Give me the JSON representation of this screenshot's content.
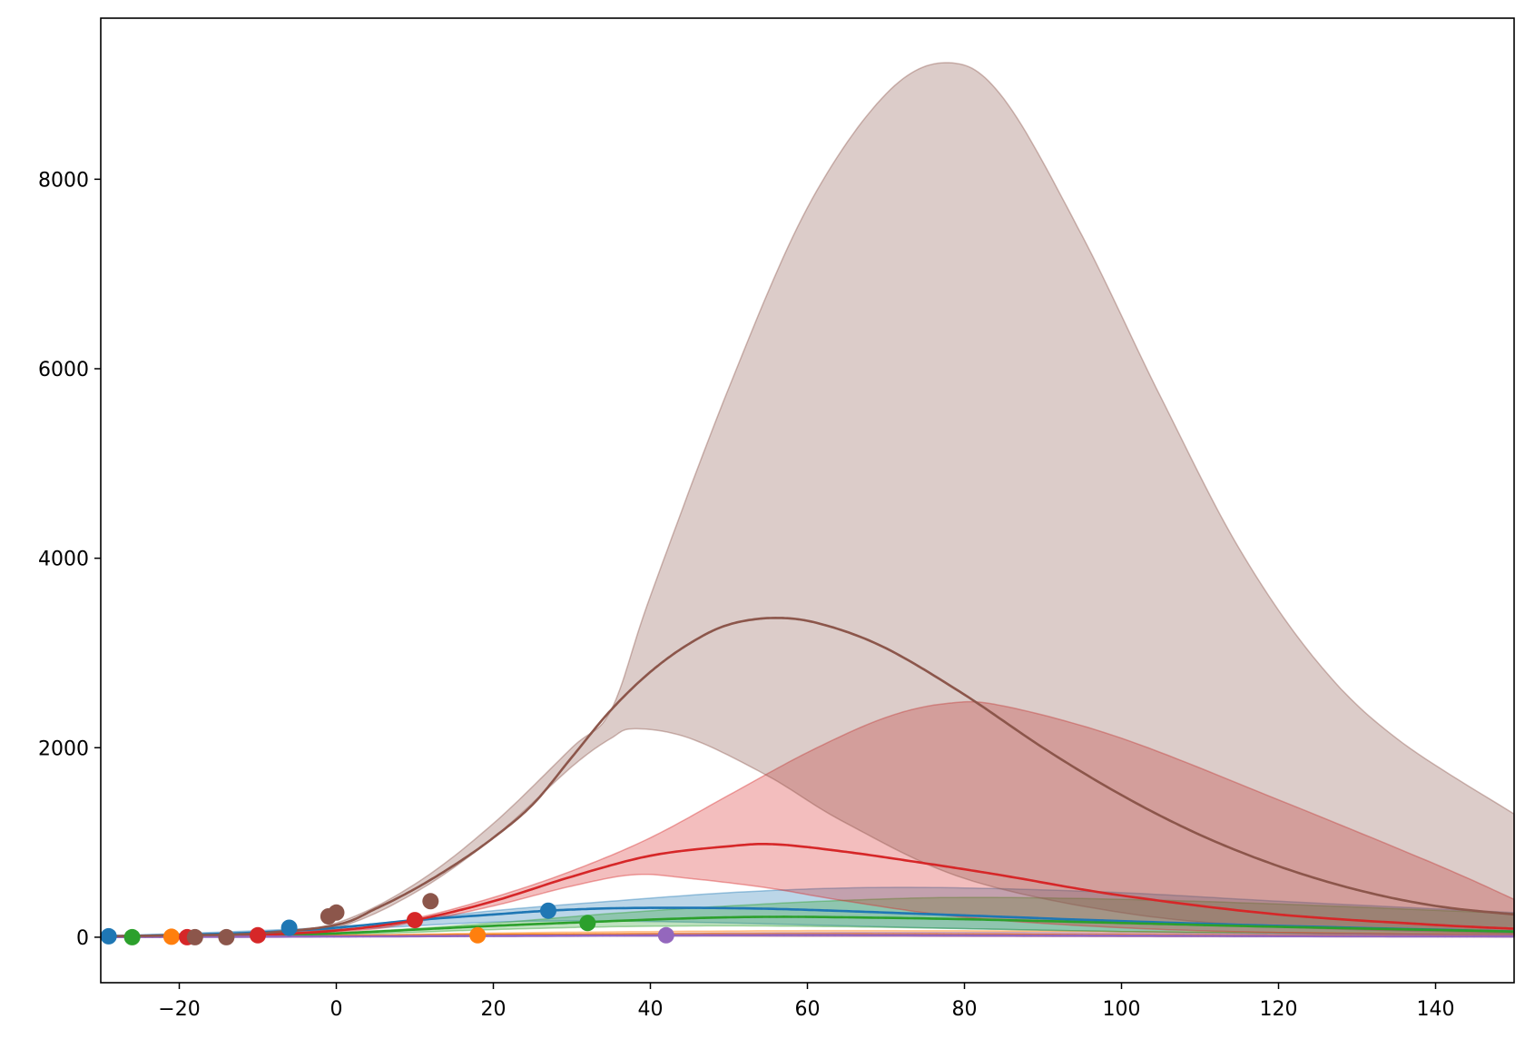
{
  "chart_data": {
    "type": "line",
    "title": "",
    "xlabel": "",
    "ylabel": "",
    "xlim": [
      -30,
      150
    ],
    "ylim": [
      -480,
      9700
    ],
    "grid": false,
    "legend": "none",
    "x_ticks": [
      -20,
      0,
      20,
      40,
      60,
      80,
      100,
      120,
      140
    ],
    "x_tick_labels": [
      "−20",
      "0",
      "20",
      "40",
      "60",
      "80",
      "100",
      "120",
      "140"
    ],
    "y_ticks": [
      0,
      2000,
      4000,
      6000,
      8000
    ],
    "y_tick_labels": [
      "0",
      "2000",
      "4000",
      "6000",
      "8000"
    ],
    "series": [
      {
        "color": "#1f77b4",
        "curve": {
          "x": [
            -30,
            -20,
            -10,
            0,
            10,
            20,
            27,
            35,
            45,
            55,
            65,
            80,
            100,
            120,
            150
          ],
          "y": [
            10,
            25,
            50,
            100,
            180,
            240,
            280,
            305,
            310,
            300,
            275,
            230,
            170,
            120,
            60
          ]
        },
        "band_upper": {
          "x": [
            -30,
            0,
            20,
            35,
            50,
            65,
            80,
            100,
            120,
            150
          ],
          "y": [
            10,
            110,
            280,
            380,
            470,
            520,
            520,
            470,
            380,
            260
          ]
        },
        "band_lower": {
          "x": [
            -30,
            0,
            20,
            35,
            50,
            65,
            80,
            100,
            120,
            150
          ],
          "y": [
            10,
            80,
            160,
            170,
            150,
            120,
            90,
            60,
            40,
            20
          ]
        },
        "points": {
          "x": [
            -29,
            -6,
            27
          ],
          "y": [
            10,
            100,
            280
          ]
        }
      },
      {
        "color": "#ff7f0e",
        "curve": {
          "x": [
            -30,
            0,
            20,
            40,
            60,
            80,
            100,
            120,
            150
          ],
          "y": [
            5,
            15,
            25,
            30,
            30,
            28,
            22,
            17,
            10
          ]
        },
        "band_upper": {
          "x": [
            -30,
            0,
            20,
            40,
            60,
            80,
            100,
            120,
            150
          ],
          "y": [
            5,
            20,
            45,
            60,
            70,
            68,
            60,
            50,
            35
          ]
        },
        "band_lower": {
          "x": [
            -30,
            0,
            20,
            40,
            60,
            80,
            100,
            120,
            150
          ],
          "y": [
            5,
            10,
            15,
            15,
            12,
            10,
            8,
            6,
            4
          ]
        },
        "points": {
          "x": [
            -21,
            18
          ],
          "y": [
            5,
            20
          ]
        }
      },
      {
        "color": "#2ca02c",
        "curve": {
          "x": [
            -30,
            -10,
            0,
            10,
            20,
            32,
            45,
            55,
            65,
            80,
            100,
            120,
            150
          ],
          "y": [
            5,
            20,
            40,
            80,
            120,
            160,
            200,
            215,
            210,
            190,
            150,
            110,
            60
          ]
        },
        "band_upper": {
          "x": [
            -30,
            0,
            20,
            35,
            50,
            65,
            80,
            100,
            120,
            150
          ],
          "y": [
            5,
            50,
            150,
            250,
            330,
            390,
            420,
            400,
            350,
            250
          ]
        },
        "band_lower": {
          "x": [
            -30,
            0,
            20,
            35,
            50,
            65,
            80,
            100,
            120,
            150
          ],
          "y": [
            5,
            30,
            80,
            110,
            120,
            110,
            90,
            60,
            40,
            20
          ]
        },
        "points": {
          "x": [
            -26,
            32
          ],
          "y": [
            0,
            150
          ]
        }
      },
      {
        "color": "#d62728",
        "curve": {
          "x": [
            -30,
            -20,
            -10,
            0,
            10,
            20,
            30,
            40,
            50,
            56,
            65,
            75,
            85,
            100,
            120,
            140,
            150
          ],
          "y": [
            10,
            15,
            25,
            70,
            180,
            380,
            640,
            860,
            960,
            980,
            900,
            780,
            650,
            440,
            240,
            130,
            90
          ]
        },
        "band_upper": {
          "x": [
            -30,
            0,
            10,
            20,
            30,
            40,
            50,
            60,
            70,
            78,
            85,
            100,
            120,
            140,
            150
          ],
          "y": [
            10,
            80,
            200,
            420,
            700,
            1050,
            1500,
            1950,
            2320,
            2470,
            2440,
            2100,
            1450,
            770,
            400
          ]
        },
        "band_lower": {
          "x": [
            -30,
            0,
            10,
            20,
            30,
            38,
            45,
            55,
            65,
            80,
            100,
            120,
            150
          ],
          "y": [
            10,
            60,
            160,
            330,
            540,
            660,
            620,
            520,
            380,
            210,
            100,
            50,
            20
          ]
        },
        "points": {
          "x": [
            -19,
            -10,
            10
          ],
          "y": [
            0,
            20,
            180
          ]
        }
      },
      {
        "color": "#9467bd",
        "curve": {
          "x": [
            -30,
            0,
            20,
            42,
            60,
            80,
            100,
            120,
            150
          ],
          "y": [
            2,
            8,
            14,
            20,
            22,
            20,
            16,
            12,
            8
          ]
        },
        "band_upper": {
          "x": [
            -30,
            0,
            20,
            42,
            60,
            80,
            100,
            120,
            150
          ],
          "y": [
            2,
            12,
            25,
            40,
            48,
            50,
            45,
            38,
            28
          ]
        },
        "band_lower": {
          "x": [
            -30,
            0,
            20,
            42,
            60,
            80,
            100,
            120,
            150
          ],
          "y": [
            2,
            5,
            8,
            10,
            9,
            8,
            6,
            4,
            3
          ]
        },
        "points": {
          "x": [
            42
          ],
          "y": [
            20
          ]
        }
      },
      {
        "color": "#8c564b",
        "curve": {
          "x": [
            -30,
            -20,
            -10,
            0,
            5,
            10,
            15,
            20,
            25,
            30,
            35,
            40,
            45,
            50,
            56,
            62,
            70,
            80,
            90,
            100,
            110,
            120,
            130,
            140,
            150
          ],
          "y": [
            10,
            20,
            40,
            130,
            300,
            510,
            760,
            1050,
            1400,
            1900,
            2400,
            2800,
            3100,
            3300,
            3370,
            3300,
            3050,
            2560,
            2000,
            1500,
            1080,
            750,
            500,
            330,
            240
          ]
        },
        "band_upper": {
          "x": [
            -30,
            -10,
            0,
            10,
            20,
            30,
            35,
            40,
            50,
            60,
            70,
            78,
            85,
            95,
            105,
            115,
            125,
            135,
            150
          ],
          "y": [
            10,
            40,
            150,
            560,
            1200,
            2000,
            2400,
            3600,
            5800,
            7700,
            8900,
            9230,
            8850,
            7400,
            5700,
            4100,
            2900,
            2100,
            1300
          ]
        },
        "band_lower": {
          "x": [
            -30,
            -10,
            0,
            10,
            20,
            30,
            35,
            38,
            45,
            55,
            65,
            80,
            100,
            120,
            150
          ],
          "y": [
            10,
            40,
            100,
            470,
            1050,
            1800,
            2100,
            2200,
            2100,
            1700,
            1200,
            620,
            260,
            110,
            40
          ]
        },
        "points": {
          "x": [
            -18,
            -14,
            -1,
            0,
            12
          ],
          "y": [
            0,
            0,
            220,
            260,
            380
          ]
        }
      }
    ]
  }
}
